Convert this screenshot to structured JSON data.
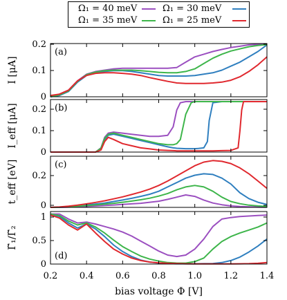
{
  "legend": [
    {
      "label": "Ω₁ = 40 meV",
      "color": "#9b4fc0"
    },
    {
      "label": "Ω₁ = 30 meV",
      "color": "#2f7fbf"
    },
    {
      "label": "Ω₁ = 35 meV",
      "color": "#3db54a"
    },
    {
      "label": "Ω₁ = 25 meV",
      "color": "#e0282e"
    }
  ],
  "x_axis": {
    "label": "bias voltage Φ [V]",
    "ticks": [
      "0.2",
      "0.4",
      "0.6",
      "0.8",
      "1.0",
      "1.2",
      "1.4"
    ]
  },
  "chart_data": [
    {
      "type": "line",
      "panel": "(a)",
      "ylabel": "I [μA]",
      "xlim": [
        0.2,
        1.4
      ],
      "ylim": [
        0,
        0.2
      ],
      "yticks": [
        "0",
        "0.1",
        "0.2"
      ],
      "x": [
        0.2,
        0.25,
        0.3,
        0.35,
        0.4,
        0.45,
        0.5,
        0.55,
        0.6,
        0.65,
        0.7,
        0.75,
        0.8,
        0.85,
        0.9,
        0.95,
        1.0,
        1.05,
        1.1,
        1.15,
        1.2,
        1.25,
        1.3,
        1.35,
        1.4
      ],
      "series": [
        {
          "name": "Ω₁ = 40 meV",
          "values": [
            0.0,
            0.01,
            0.025,
            0.06,
            0.085,
            0.095,
            0.1,
            0.105,
            0.107,
            0.107,
            0.107,
            0.107,
            0.107,
            0.107,
            0.11,
            0.13,
            0.15,
            0.16,
            0.17,
            0.178,
            0.185,
            0.19,
            0.195,
            0.197,
            0.198
          ]
        },
        {
          "name": "Ω₁ = 30 meV",
          "values": [
            0.0,
            0.005,
            0.02,
            0.055,
            0.08,
            0.09,
            0.095,
            0.098,
            0.098,
            0.095,
            0.09,
            0.085,
            0.08,
            0.078,
            0.078,
            0.078,
            0.08,
            0.085,
            0.09,
            0.1,
            0.115,
            0.13,
            0.15,
            0.17,
            0.195
          ]
        },
        {
          "name": "Ω₁ = 35 meV",
          "values": [
            0.0,
            0.007,
            0.022,
            0.058,
            0.083,
            0.093,
            0.098,
            0.1,
            0.1,
            0.1,
            0.098,
            0.095,
            0.092,
            0.09,
            0.09,
            0.095,
            0.105,
            0.125,
            0.145,
            0.16,
            0.172,
            0.18,
            0.188,
            0.193,
            0.196
          ]
        },
        {
          "name": "Ω₁ = 25 meV",
          "values": [
            0.005,
            0.01,
            0.025,
            0.06,
            0.08,
            0.088,
            0.09,
            0.09,
            0.088,
            0.085,
            0.08,
            0.072,
            0.065,
            0.058,
            0.052,
            0.05,
            0.05,
            0.05,
            0.052,
            0.055,
            0.062,
            0.075,
            0.095,
            0.12,
            0.15
          ]
        }
      ]
    },
    {
      "type": "line",
      "panel": "(b)",
      "ylabel": "I_eff [μA]",
      "xlim": [
        0.2,
        1.4
      ],
      "ylim": [
        0,
        0.25
      ],
      "yticks": [
        "0",
        "0.1",
        "0.2"
      ],
      "x": [
        0.2,
        0.3,
        0.4,
        0.45,
        0.48,
        0.5,
        0.52,
        0.55,
        0.6,
        0.65,
        0.7,
        0.75,
        0.8,
        0.85,
        0.88,
        0.9,
        0.92,
        0.95,
        0.98,
        1.0,
        1.02,
        1.05,
        1.07,
        1.08,
        1.1,
        1.15,
        1.2,
        1.24,
        1.25,
        1.26,
        1.27,
        1.3,
        1.4
      ],
      "series": [
        {
          "name": "Ω₁ = 40 meV",
          "values": [
            0,
            0,
            0,
            0,
            0.02,
            0.07,
            0.09,
            0.095,
            0.09,
            0.085,
            0.08,
            0.075,
            0.075,
            0.08,
            0.12,
            0.2,
            0.235,
            0.24,
            0.24,
            0.24,
            0.24,
            0.24,
            0.24,
            0.24,
            0.24,
            0.24,
            0.24,
            0.24,
            0.24,
            0.24,
            0.24,
            0.24,
            0.24
          ]
        },
        {
          "name": "Ω₁ = 30 meV",
          "values": [
            0,
            0,
            0,
            0,
            0.015,
            0.06,
            0.08,
            0.085,
            0.075,
            0.065,
            0.055,
            0.045,
            0.035,
            0.025,
            0.02,
            0.018,
            0.017,
            0.016,
            0.016,
            0.016,
            0.017,
            0.02,
            0.05,
            0.15,
            0.235,
            0.24,
            0.24,
            0.24,
            0.24,
            0.24,
            0.24,
            0.24,
            0.24
          ]
        },
        {
          "name": "Ω₁ = 35 meV",
          "values": [
            0,
            0,
            0,
            0,
            0.018,
            0.065,
            0.085,
            0.09,
            0.08,
            0.07,
            0.06,
            0.05,
            0.04,
            0.035,
            0.035,
            0.04,
            0.06,
            0.18,
            0.235,
            0.24,
            0.24,
            0.24,
            0.24,
            0.24,
            0.24,
            0.24,
            0.24,
            0.24,
            0.24,
            0.24,
            0.24,
            0.24,
            0.24
          ]
        },
        {
          "name": "Ω₁ = 25 meV",
          "values": [
            0,
            0,
            0,
            0,
            0.01,
            0.05,
            0.07,
            0.06,
            0.04,
            0.03,
            0.02,
            0.015,
            0.01,
            0.008,
            0.007,
            0.006,
            0.006,
            0.006,
            0.006,
            0.006,
            0.006,
            0.006,
            0.006,
            0.006,
            0.006,
            0.007,
            0.008,
            0.02,
            0.1,
            0.2,
            0.24,
            0.24,
            0.24
          ]
        }
      ]
    },
    {
      "type": "line",
      "panel": "(c)",
      "ylabel": "t_eff [eV]",
      "xlim": [
        0.2,
        1.4
      ],
      "ylim": [
        0,
        0.35
      ],
      "yticks": [
        "0",
        "0.2"
      ],
      "x": [
        0.2,
        0.25,
        0.3,
        0.35,
        0.4,
        0.45,
        0.5,
        0.55,
        0.6,
        0.65,
        0.7,
        0.75,
        0.8,
        0.85,
        0.9,
        0.95,
        1.0,
        1.05,
        1.1,
        1.15,
        1.2,
        1.25,
        1.3,
        1.35,
        1.4
      ],
      "series": [
        {
          "name": "Ω₁ = 40 meV",
          "values": [
            0,
            0,
            0.002,
            0.004,
            0.007,
            0.01,
            0.013,
            0.016,
            0.02,
            0.024,
            0.028,
            0.035,
            0.042,
            0.055,
            0.07,
            0.085,
            0.075,
            0.05,
            0.03,
            0.018,
            0.01,
            0.006,
            0.004,
            0.002,
            0.001
          ]
        },
        {
          "name": "Ω₁ = 30 meV",
          "values": [
            0,
            0.002,
            0.005,
            0.01,
            0.016,
            0.023,
            0.03,
            0.04,
            0.05,
            0.062,
            0.075,
            0.09,
            0.11,
            0.14,
            0.17,
            0.2,
            0.22,
            0.23,
            0.225,
            0.2,
            0.16,
            0.1,
            0.06,
            0.035,
            0.02
          ]
        },
        {
          "name": "Ω₁ = 35 meV",
          "values": [
            0,
            0.001,
            0.004,
            0.008,
            0.012,
            0.017,
            0.022,
            0.028,
            0.035,
            0.043,
            0.052,
            0.063,
            0.077,
            0.095,
            0.12,
            0.14,
            0.15,
            0.14,
            0.11,
            0.07,
            0.04,
            0.025,
            0.015,
            0.01,
            0.006
          ]
        },
        {
          "name": "Ω₁ = 25 meV",
          "values": [
            0,
            0.003,
            0.008,
            0.015,
            0.024,
            0.034,
            0.045,
            0.058,
            0.072,
            0.088,
            0.105,
            0.125,
            0.15,
            0.18,
            0.215,
            0.25,
            0.285,
            0.31,
            0.32,
            0.315,
            0.3,
            0.27,
            0.23,
            0.18,
            0.13
          ]
        }
      ]
    },
    {
      "type": "line",
      "panel": "(d)",
      "ylabel": "Γ̃₁/Γ̃₂",
      "xlim": [
        0.2,
        1.4
      ],
      "ylim": [
        0,
        1.05
      ],
      "yticks": [
        "0",
        "0.5",
        "1"
      ],
      "x": [
        0.2,
        0.25,
        0.3,
        0.35,
        0.4,
        0.45,
        0.5,
        0.55,
        0.6,
        0.65,
        0.7,
        0.75,
        0.8,
        0.85,
        0.9,
        0.95,
        1.0,
        1.05,
        1.1,
        1.15,
        1.2,
        1.25,
        1.3,
        1.35,
        1.4
      ],
      "series": [
        {
          "name": "Ω₁ = 40 meV",
          "values": [
            1,
            1,
            0.9,
            0.82,
            0.84,
            0.8,
            0.75,
            0.7,
            0.64,
            0.56,
            0.46,
            0.36,
            0.26,
            0.18,
            0.15,
            0.18,
            0.3,
            0.5,
            0.75,
            0.9,
            0.93,
            0.95,
            0.96,
            0.97,
            0.98
          ]
        },
        {
          "name": "Ω₁ = 30 meV",
          "values": [
            1,
            0.95,
            0.82,
            0.72,
            0.8,
            0.7,
            0.55,
            0.38,
            0.25,
            0.15,
            0.08,
            0.04,
            0.02,
            0.01,
            0.005,
            0.005,
            0.005,
            0.008,
            0.01,
            0.03,
            0.07,
            0.14,
            0.24,
            0.36,
            0.5
          ]
        },
        {
          "name": "Ω₁ = 35 meV",
          "values": [
            1,
            0.97,
            0.86,
            0.78,
            0.82,
            0.74,
            0.62,
            0.48,
            0.35,
            0.25,
            0.16,
            0.1,
            0.06,
            0.03,
            0.02,
            0.02,
            0.05,
            0.12,
            0.3,
            0.45,
            0.55,
            0.62,
            0.68,
            0.74,
            0.82
          ]
        },
        {
          "name": "Ω₁ = 25 meV",
          "values": [
            0.98,
            0.92,
            0.78,
            0.68,
            0.8,
            0.62,
            0.45,
            0.3,
            0.2,
            0.12,
            0.07,
            0.04,
            0.025,
            0.015,
            0.01,
            0.005,
            0.004,
            0.003,
            0.003,
            0.003,
            0.004,
            0.005,
            0.008,
            0.015,
            0.03
          ]
        }
      ]
    }
  ]
}
